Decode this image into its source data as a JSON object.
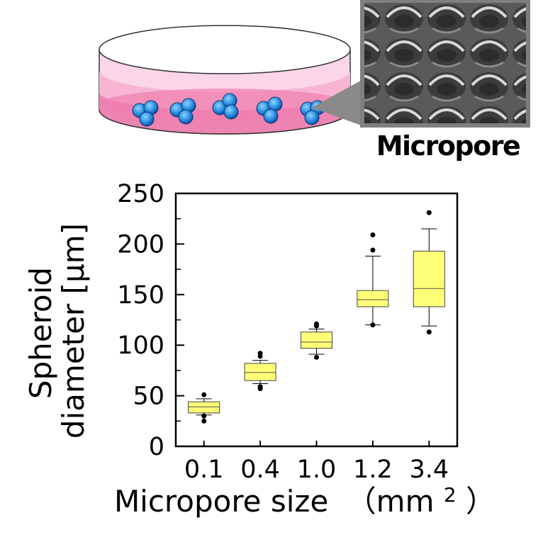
{
  "illustration": {
    "inset_label": "Micropore",
    "icons": [
      "petri-dish-icon",
      "cell-cluster-icon",
      "micropore-micrograph-icon"
    ]
  },
  "chart_data": {
    "type": "box",
    "categories": [
      "0.1",
      "0.4",
      "1.0",
      "1.2",
      "3.4"
    ],
    "xlabel_main": "Micropore size",
    "xlabel_unit_open": "（mm",
    "xlabel_unit_sup": "2",
    "xlabel_unit_close": "）",
    "ylabel_line1": "Spheroid",
    "ylabel_line2": "diameter [μm]",
    "ylim": [
      0,
      250
    ],
    "yticks": [
      0,
      50,
      100,
      150,
      200,
      250
    ],
    "ytick_labels": [
      "0",
      "50",
      "100",
      "150",
      "200",
      "250"
    ],
    "grid": false,
    "box_color": "#ffff77",
    "boxes": [
      {
        "category": "0.1",
        "whisker_low": 31,
        "q1": 33,
        "median": 39,
        "q3": 44,
        "whisker_high": 47,
        "outliers": [
          25,
          30,
          51
        ]
      },
      {
        "category": "0.4",
        "whisker_low": 62,
        "q1": 65,
        "median": 73,
        "q3": 82,
        "whisker_high": 85,
        "outliers": [
          57,
          59,
          89,
          92
        ]
      },
      {
        "category": "1.0",
        "whisker_low": 91,
        "q1": 97,
        "median": 103,
        "q3": 113,
        "whisker_high": 116,
        "outliers": [
          88,
          119,
          121
        ]
      },
      {
        "category": "1.2",
        "whisker_low": 120,
        "q1": 138,
        "median": 145,
        "q3": 154,
        "whisker_high": 188,
        "outliers": [
          120,
          194,
          209
        ]
      },
      {
        "category": "3.4",
        "whisker_low": 119,
        "q1": 138,
        "median": 156,
        "q3": 193,
        "whisker_high": 215,
        "outliers": [
          113,
          231
        ]
      }
    ]
  }
}
